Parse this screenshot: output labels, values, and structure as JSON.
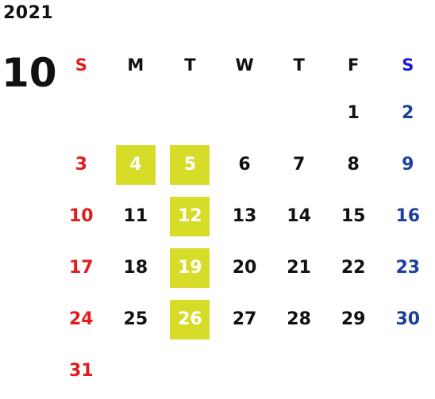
{
  "calendar": {
    "year": "2021",
    "month": "10",
    "weekdays": [
      "S",
      "M",
      "T",
      "W",
      "T",
      "F",
      "S"
    ],
    "weeks": [
      [
        "",
        "",
        "",
        "",
        "",
        "1",
        "2"
      ],
      [
        "3",
        "4",
        "5",
        "6",
        "7",
        "8",
        "9"
      ],
      [
        "10",
        "11",
        "12",
        "13",
        "14",
        "15",
        "16"
      ],
      [
        "17",
        "18",
        "19",
        "20",
        "21",
        "22",
        "23"
      ],
      [
        "24",
        "25",
        "26",
        "27",
        "28",
        "29",
        "30"
      ],
      [
        "31",
        "",
        "",
        "",
        "",
        "",
        ""
      ]
    ],
    "highlighted_days": [
      "4",
      "5",
      "12",
      "19",
      "26"
    ],
    "colors": {
      "sunday": "#e01d1d",
      "saturday": "#1e3f9e",
      "saturday_header": "#1a1ad6",
      "highlight_bg": "#d6dc28",
      "highlight_text": "#ffffff",
      "text": "#111111"
    }
  }
}
